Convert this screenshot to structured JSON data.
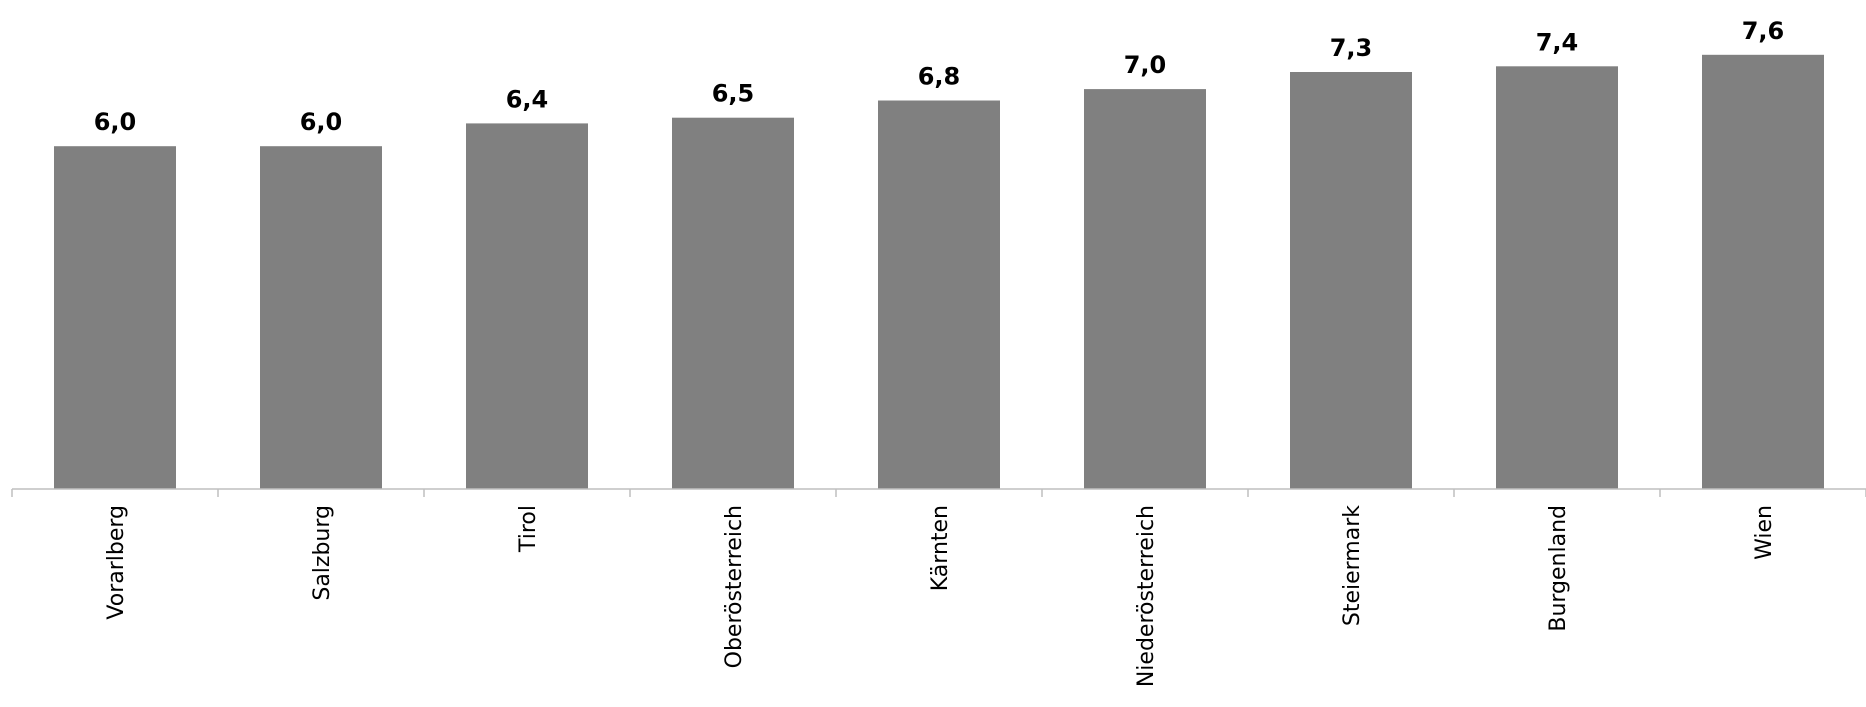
{
  "chart_data": {
    "type": "bar",
    "categories": [
      "Vorarlberg",
      "Salzburg",
      "Tirol",
      "Oberösterreich",
      "Kärnten",
      "Niederösterreich",
      "Steiermark",
      "Burgenland",
      "Wien"
    ],
    "values": [
      6.0,
      6.0,
      6.4,
      6.5,
      6.8,
      7.0,
      7.3,
      7.4,
      7.6
    ],
    "value_labels": [
      "6,0",
      "6,0",
      "6,4",
      "6,5",
      "6,8",
      "7,0",
      "7,3",
      "7,4",
      "7,6"
    ],
    "bar_color": "#808080",
    "axis_color": "#bfbfbf",
    "title": "",
    "xlabel": "",
    "ylabel": "",
    "ylim": [
      0,
      8.56
    ],
    "grid": false,
    "legend": "none"
  }
}
